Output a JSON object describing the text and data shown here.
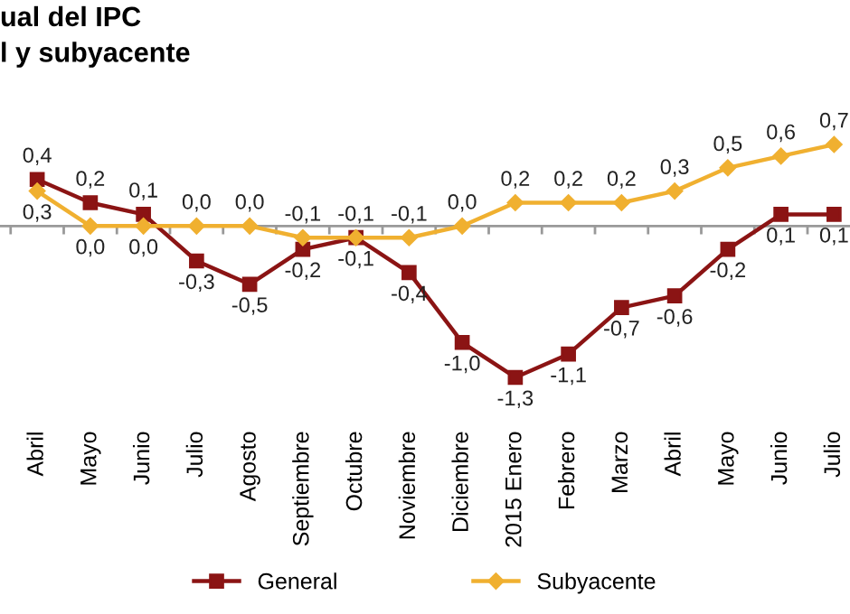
{
  "chart_data": {
    "type": "line",
    "title": "ual del IPC\nl y subyacente",
    "categories": [
      "Abril",
      "Mayo",
      "Junio",
      "Julio",
      "Agosto",
      "Septiembre",
      "Octubre",
      "Noviembre",
      "Diciembre",
      "2015 Enero",
      "Febrero",
      "Marzo",
      "Abril",
      "Mayo",
      "Junio",
      "Julio"
    ],
    "series": [
      {
        "name": "General",
        "color": "#8b1414",
        "marker": "square",
        "values": [
          0.4,
          0.2,
          0.1,
          -0.3,
          -0.5,
          -0.2,
          -0.1,
          -0.4,
          -1.0,
          -1.3,
          -1.1,
          -0.7,
          -0.6,
          -0.2,
          0.1,
          0.1
        ],
        "value_labels": [
          "0,4",
          "0,2",
          "0,1",
          "-0,3",
          "-0,5",
          "-0,2",
          "-0,1",
          "-0,4",
          "-1,0",
          "-1,3",
          "-1,1",
          "-0,7",
          "-0,6",
          "-0,2",
          "0,1",
          "0,1"
        ]
      },
      {
        "name": "Subyacente",
        "color": "#f0b030",
        "marker": "diamond",
        "values": [
          0.3,
          0.0,
          0.0,
          0.0,
          0.0,
          -0.1,
          -0.1,
          -0.1,
          0.0,
          0.2,
          0.2,
          0.2,
          0.3,
          0.5,
          0.6,
          0.7
        ],
        "value_labels": [
          "0,3",
          "0,0",
          "0,0",
          "0,0",
          "0,0",
          "-0,1",
          "-0,1",
          "-0,1",
          "0,0",
          "0,2",
          "0,2",
          "0,2",
          "0,3",
          "0,5",
          "0,6",
          "0,7"
        ]
      }
    ],
    "legend": "bottom",
    "grid": false,
    "line_style": "solid"
  }
}
